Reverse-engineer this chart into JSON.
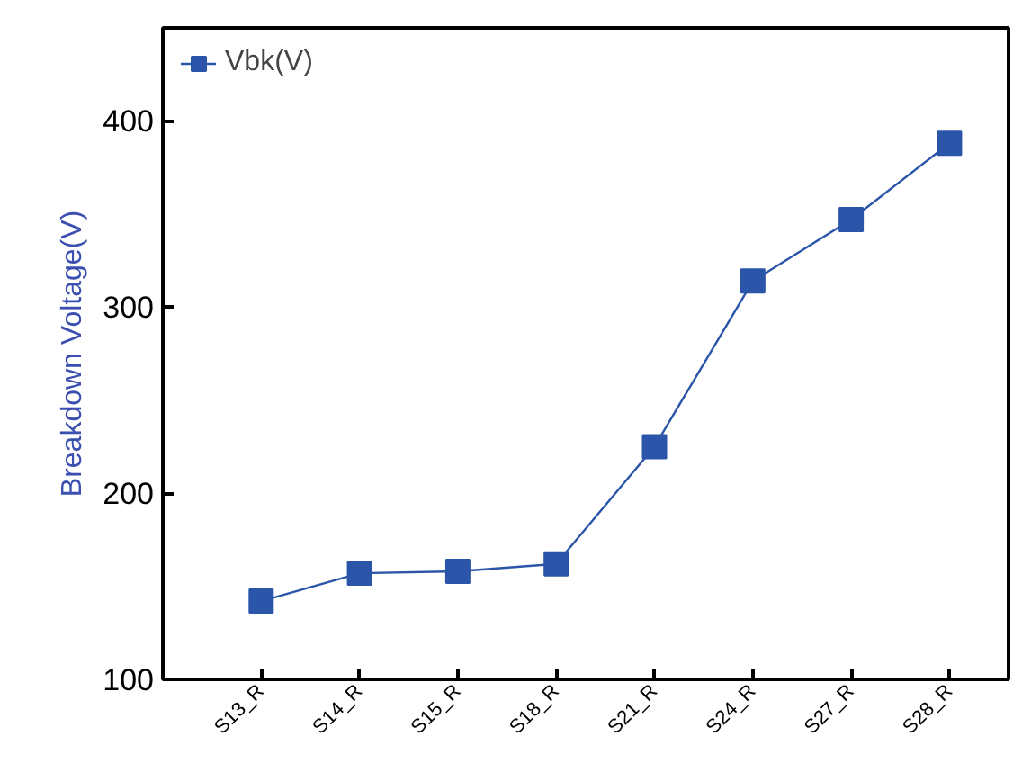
{
  "chart_data": {
    "type": "line",
    "ylabel": "Breakdown Voltage(V)",
    "categories": [
      "S13_R",
      "S14_R",
      "S15_R",
      "S18_R",
      "S21_R",
      "S24_R",
      "S27_R",
      "S28_R"
    ],
    "series": [
      {
        "name": "Vbk(V)",
        "color": "#2a55a8",
        "values": [
          142,
          157,
          158,
          162,
          225,
          314,
          347,
          388
        ]
      }
    ],
    "ylim": [
      100,
      450
    ],
    "yticks": [
      100,
      200,
      300,
      400
    ],
    "grid": false,
    "legend": "top left",
    "marker": "square",
    "line_style": "solid"
  }
}
